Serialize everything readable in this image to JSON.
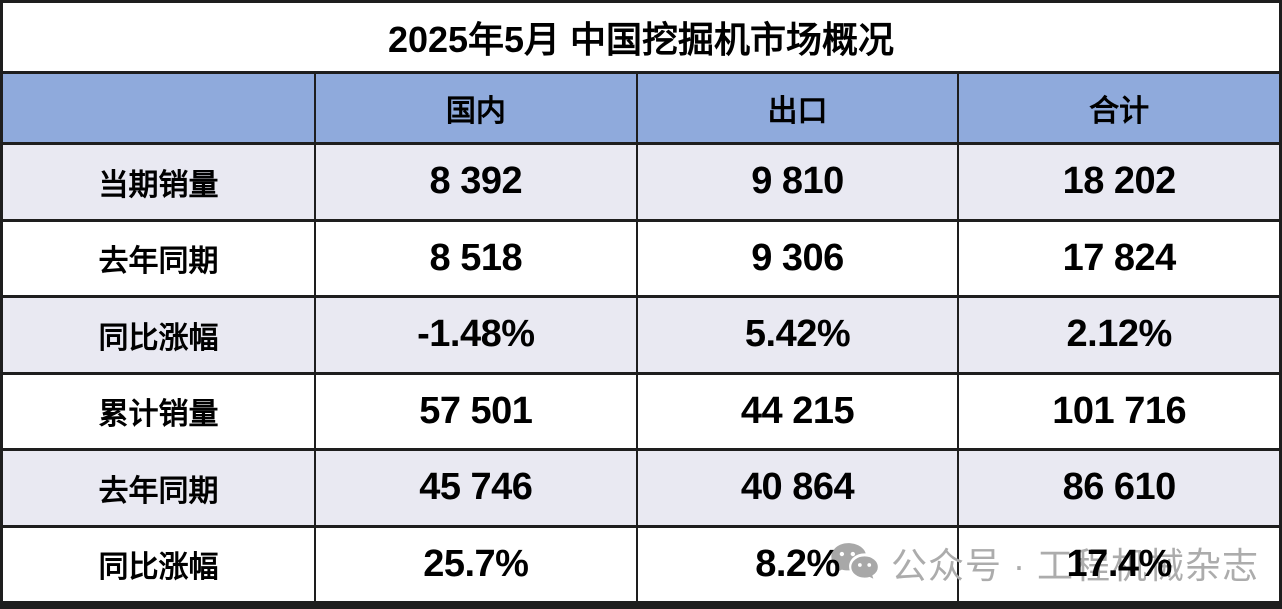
{
  "title": "2025年5月 中国挖掘机市场概况",
  "chart_data": {
    "type": "table",
    "title": "2025年5月 中国挖掘机市场概况",
    "columns": [
      "",
      "国内",
      "出口",
      "合计"
    ],
    "rows": [
      {
        "label": "当期销量",
        "values": [
          "8 392",
          "9 810",
          "18 202"
        ]
      },
      {
        "label": "去年同期",
        "values": [
          "8 518",
          "9 306",
          "17 824"
        ]
      },
      {
        "label": "同比涨幅",
        "values": [
          "-1.48%",
          "5.42%",
          "2.12%"
        ]
      },
      {
        "label": "累计销量",
        "values": [
          "57 501",
          "44 215",
          "101 716"
        ]
      },
      {
        "label": "去年同期",
        "values": [
          "45 746",
          "40 864",
          "86 610"
        ]
      },
      {
        "label": "同比涨幅",
        "values": [
          "25.7%",
          "8.2%",
          "17.4%"
        ]
      }
    ],
    "numeric_rows": [
      {
        "label": "当期销量",
        "国内": 8392,
        "出口": 9810,
        "合计": 18202
      },
      {
        "label": "去年同期",
        "国内": 8518,
        "出口": 9306,
        "合计": 17824
      },
      {
        "label": "同比涨幅",
        "国内": -1.48,
        "出口": 5.42,
        "合计": 2.12,
        "unit": "%"
      },
      {
        "label": "累计销量",
        "国内": 57501,
        "出口": 44215,
        "合计": 101716
      },
      {
        "label": "去年同期",
        "国内": 45746,
        "出口": 40864,
        "合计": 86610
      },
      {
        "label": "同比涨幅",
        "国内": 25.7,
        "出口": 8.2,
        "合计": 17.4,
        "unit": "%"
      }
    ]
  },
  "watermark": {
    "icon": "wechat-icon",
    "text": "公众号 · 工程机械杂志"
  },
  "colors": {
    "header_bg": "#8FAADC",
    "row_alt_bg": "#E9E9F2",
    "row_bg": "#FFFFFF",
    "border": "#1E1E1E",
    "title_text": "#000000",
    "watermark": "#ACACAC"
  }
}
